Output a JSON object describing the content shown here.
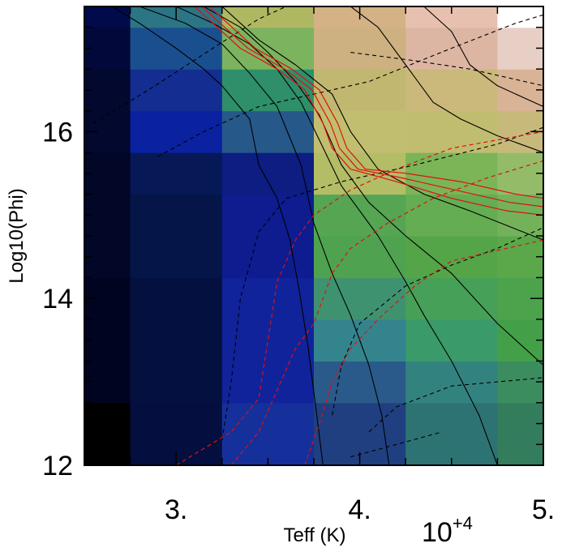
{
  "chart_data": {
    "type": "heatmap",
    "title": "",
    "xlabel": "Teff (K)",
    "ylabel": "Log10(Phi)",
    "x_multiplier_label": "10",
    "x_multiplier_exponent": "+4",
    "xlim": [
      2.5,
      5.0
    ],
    "ylim": [
      12.0,
      17.5
    ],
    "x_ticks": [
      {
        "value": 3.0,
        "label": "3."
      },
      {
        "value": 4.0,
        "label": "4."
      },
      {
        "value": 5.0,
        "label": "5."
      }
    ],
    "y_ticks": [
      {
        "value": 12.0,
        "label": "12"
      },
      {
        "value": 14.0,
        "label": "14"
      },
      {
        "value": 16.0,
        "label": "16"
      }
    ],
    "x_cell_edges": [
      2.5,
      2.75,
      3.25,
      3.75,
      4.25,
      4.75,
      5.0
    ],
    "y_cell_edges": [
      12.0,
      12.25,
      12.75,
      13.25,
      13.75,
      14.25,
      14.75,
      15.25,
      15.75,
      16.25,
      16.75,
      17.25,
      17.5
    ],
    "cell_colors": [
      [
        "#000000",
        "#040f3f",
        "#15309a",
        "#203f80",
        "#2e7373",
        "#337d5d"
      ],
      [
        "#000000",
        "#040f3f",
        "#15309a",
        "#203f80",
        "#2e7373",
        "#337d5d"
      ],
      [
        "#010420",
        "#04103f",
        "#11239a",
        "#2a5a8a",
        "#32837f",
        "#3b8c5f"
      ],
      [
        "#010420",
        "#04103f",
        "#11239a",
        "#34848d",
        "#3b9a6a",
        "#44a048"
      ],
      [
        "#010420",
        "#04103f",
        "#11239a",
        "#3f9270",
        "#47a058",
        "#4ca34c"
      ],
      [
        "#020627",
        "#051547",
        "#0e1c8f",
        "#4fa350",
        "#54a548",
        "#5aa84a"
      ],
      [
        "#020627",
        "#051547",
        "#0e1c8f",
        "#55a553",
        "#64ad52",
        "#73b25a"
      ],
      [
        "#020627",
        "#061956",
        "#0d1d82",
        "#b2bd66",
        "#7cb458",
        "#94bb68"
      ],
      [
        "#03082f",
        "#0a21a0",
        "#26588a",
        "#c1bf6f",
        "#c0bd70",
        "#c7b97a"
      ],
      [
        "#03082f",
        "#132d90",
        "#2e8f6a",
        "#c2b770",
        "#cab97a",
        "#d9b396"
      ],
      [
        "#03083a",
        "#1a4f8f",
        "#7cb35f",
        "#cdb180",
        "#dcb6a2",
        "#e8cfc6"
      ],
      [
        "#010a4a",
        "#2b7585",
        "#afb861",
        "#d4b286",
        "#e8c0b0",
        "#ffffff"
      ]
    ],
    "contour_lines": [
      {
        "style": "solid",
        "color": "#000000",
        "points": [
          [
            2.65,
            17.5
          ],
          [
            2.8,
            17.3
          ],
          [
            3.0,
            17.0
          ],
          [
            3.15,
            16.75
          ],
          [
            3.25,
            16.55
          ],
          [
            3.4,
            16.15
          ],
          [
            3.45,
            15.6
          ],
          [
            3.55,
            15.2
          ],
          [
            3.62,
            14.7
          ],
          [
            3.67,
            14.1
          ],
          [
            3.72,
            13.4
          ],
          [
            3.76,
            12.7
          ],
          [
            3.8,
            12.0
          ]
        ]
      },
      {
        "style": "solid",
        "color": "#000000",
        "points": [
          [
            2.8,
            17.5
          ],
          [
            3.05,
            17.3
          ],
          [
            3.25,
            17.05
          ],
          [
            3.4,
            16.7
          ],
          [
            3.55,
            16.3
          ],
          [
            3.68,
            15.6
          ],
          [
            3.75,
            14.9
          ],
          [
            3.85,
            14.3
          ],
          [
            3.95,
            13.8
          ],
          [
            4.05,
            13.2
          ],
          [
            4.12,
            12.6
          ],
          [
            4.16,
            12.0
          ]
        ]
      },
      {
        "style": "solid",
        "color": "#000000",
        "points": [
          [
            3.0,
            17.5
          ],
          [
            3.2,
            17.3
          ],
          [
            3.4,
            17.05
          ],
          [
            3.55,
            16.75
          ],
          [
            3.68,
            16.35
          ],
          [
            3.78,
            15.9
          ],
          [
            3.9,
            15.35
          ],
          [
            4.1,
            14.75
          ],
          [
            4.25,
            14.2
          ],
          [
            4.35,
            13.8
          ],
          [
            4.5,
            13.25
          ],
          [
            4.65,
            12.6
          ],
          [
            4.75,
            12.0
          ]
        ]
      },
      {
        "style": "solid",
        "color": "#000000",
        "points": [
          [
            3.15,
            17.5
          ],
          [
            3.35,
            17.25
          ],
          [
            3.5,
            16.95
          ],
          [
            3.65,
            16.6
          ],
          [
            3.78,
            16.2
          ],
          [
            3.9,
            15.6
          ],
          [
            4.05,
            15.15
          ],
          [
            4.25,
            14.75
          ],
          [
            4.5,
            14.3
          ],
          [
            4.75,
            13.7
          ],
          [
            5.0,
            13.2
          ]
        ]
      },
      {
        "style": "solid",
        "color": "#000000",
        "points": [
          [
            3.25,
            17.5
          ],
          [
            3.45,
            17.1
          ],
          [
            3.65,
            16.8
          ],
          [
            3.85,
            16.45
          ],
          [
            3.95,
            16.0
          ],
          [
            4.1,
            15.55
          ],
          [
            4.35,
            15.25
          ],
          [
            4.6,
            15.05
          ],
          [
            5.0,
            14.7
          ]
        ]
      },
      {
        "style": "solid",
        "color": "#000000",
        "points": [
          [
            3.95,
            17.5
          ],
          [
            4.1,
            17.25
          ],
          [
            4.25,
            16.8
          ],
          [
            4.4,
            16.35
          ],
          [
            4.55,
            16.15
          ],
          [
            4.75,
            15.95
          ],
          [
            5.0,
            15.75
          ]
        ]
      },
      {
        "style": "solid",
        "color": "#000000",
        "points": [
          [
            4.35,
            17.5
          ],
          [
            4.5,
            17.2
          ],
          [
            4.6,
            16.8
          ],
          [
            4.75,
            16.55
          ],
          [
            5.0,
            16.3
          ]
        ]
      },
      {
        "style": "solid",
        "color": "#000000",
        "points": [
          [
            2.55,
            12.5
          ],
          [
            2.75,
            12.6
          ]
        ]
      },
      {
        "style": "dashed",
        "color": "#000000",
        "points": [
          [
            2.55,
            16.1
          ],
          [
            2.85,
            16.5
          ],
          [
            3.2,
            17.0
          ],
          [
            3.45,
            17.35
          ],
          [
            3.6,
            17.5
          ]
        ]
      },
      {
        "style": "dashed",
        "color": "#000000",
        "points": [
          [
            2.9,
            15.7
          ],
          [
            3.15,
            16.0
          ],
          [
            3.45,
            16.3
          ],
          [
            3.75,
            16.45
          ],
          [
            4.05,
            16.6
          ],
          [
            4.5,
            17.0
          ],
          [
            4.85,
            17.3
          ],
          [
            5.0,
            17.4
          ]
        ]
      },
      {
        "style": "dashed",
        "color": "#000000",
        "points": [
          [
            3.25,
            12.3
          ],
          [
            3.3,
            13.0
          ],
          [
            3.35,
            14.0
          ],
          [
            3.45,
            14.8
          ],
          [
            3.6,
            15.2
          ],
          [
            3.9,
            15.4
          ],
          [
            4.3,
            15.6
          ],
          [
            4.75,
            15.85
          ],
          [
            5.0,
            16.05
          ]
        ]
      },
      {
        "style": "dashed",
        "color": "#000000",
        "points": [
          [
            3.85,
            12.6
          ],
          [
            3.9,
            13.2
          ],
          [
            4.0,
            13.7
          ],
          [
            4.25,
            14.15
          ],
          [
            4.5,
            14.4
          ],
          [
            4.75,
            14.6
          ],
          [
            5.0,
            14.85
          ]
        ]
      },
      {
        "style": "dashed",
        "color": "#000000",
        "points": [
          [
            4.05,
            12.4
          ],
          [
            4.2,
            12.7
          ],
          [
            4.5,
            12.95
          ],
          [
            4.75,
            13.0
          ],
          [
            5.0,
            13.05
          ]
        ]
      },
      {
        "style": "dashed",
        "color": "#000000",
        "points": [
          [
            3.95,
            16.95
          ],
          [
            4.3,
            16.85
          ],
          [
            4.6,
            16.75
          ],
          [
            5.0,
            16.55
          ]
        ]
      },
      {
        "style": "dashed",
        "color": "#000000",
        "points": [
          [
            3.95,
            12.1
          ],
          [
            4.2,
            12.25
          ],
          [
            4.45,
            12.4
          ]
        ]
      },
      {
        "style": "dashed",
        "color": "#e01010",
        "points": [
          [
            3.0,
            12.0
          ],
          [
            3.15,
            12.2
          ],
          [
            3.3,
            12.4
          ],
          [
            3.45,
            12.8
          ],
          [
            3.5,
            13.5
          ],
          [
            3.55,
            14.2
          ],
          [
            3.65,
            14.7
          ],
          [
            3.75,
            15.0
          ],
          [
            3.95,
            15.3
          ],
          [
            4.2,
            15.55
          ],
          [
            4.5,
            15.8
          ],
          [
            5.0,
            16.0
          ]
        ]
      },
      {
        "style": "dashed",
        "color": "#e01010",
        "points": [
          [
            3.3,
            12.0
          ],
          [
            3.45,
            12.4
          ],
          [
            3.55,
            12.9
          ],
          [
            3.65,
            13.4
          ],
          [
            3.75,
            13.7
          ],
          [
            3.85,
            14.3
          ],
          [
            3.95,
            14.6
          ],
          [
            4.15,
            14.9
          ],
          [
            4.4,
            15.2
          ],
          [
            4.7,
            15.45
          ],
          [
            5.0,
            15.65
          ]
        ]
      },
      {
        "style": "dashed",
        "color": "#e01010",
        "points": [
          [
            3.7,
            12.0
          ],
          [
            3.78,
            12.5
          ],
          [
            3.85,
            13.0
          ],
          [
            3.95,
            13.4
          ],
          [
            4.1,
            13.75
          ],
          [
            4.3,
            14.15
          ],
          [
            4.5,
            14.45
          ],
          [
            4.8,
            14.6
          ],
          [
            5.0,
            14.7
          ]
        ]
      },
      {
        "style": "solid",
        "color": "#e01010",
        "points": [
          [
            3.1,
            17.5
          ],
          [
            3.2,
            17.3
          ],
          [
            3.35,
            17.0
          ],
          [
            3.55,
            16.75
          ],
          [
            3.7,
            16.5
          ],
          [
            3.8,
            16.1
          ],
          [
            3.85,
            15.8
          ],
          [
            3.95,
            15.55
          ],
          [
            4.2,
            15.4
          ],
          [
            4.5,
            15.2
          ],
          [
            4.8,
            15.05
          ],
          [
            5.0,
            15.0
          ]
        ]
      },
      {
        "style": "solid",
        "color": "#e01010",
        "points": [
          [
            3.14,
            17.5
          ],
          [
            3.24,
            17.3
          ],
          [
            3.39,
            17.0
          ],
          [
            3.59,
            16.75
          ],
          [
            3.74,
            16.5
          ],
          [
            3.84,
            16.1
          ],
          [
            3.89,
            15.8
          ],
          [
            3.99,
            15.55
          ],
          [
            4.22,
            15.45
          ],
          [
            4.52,
            15.3
          ],
          [
            4.82,
            15.15
          ],
          [
            5.0,
            15.1
          ]
        ]
      },
      {
        "style": "solid",
        "color": "#e01010",
        "points": [
          [
            3.18,
            17.5
          ],
          [
            3.28,
            17.3
          ],
          [
            3.43,
            17.0
          ],
          [
            3.63,
            16.75
          ],
          [
            3.78,
            16.5
          ],
          [
            3.88,
            16.1
          ],
          [
            3.93,
            15.8
          ],
          [
            4.03,
            15.55
          ],
          [
            4.25,
            15.5
          ],
          [
            4.55,
            15.4
          ],
          [
            4.85,
            15.25
          ],
          [
            5.0,
            15.2
          ]
        ]
      }
    ]
  }
}
